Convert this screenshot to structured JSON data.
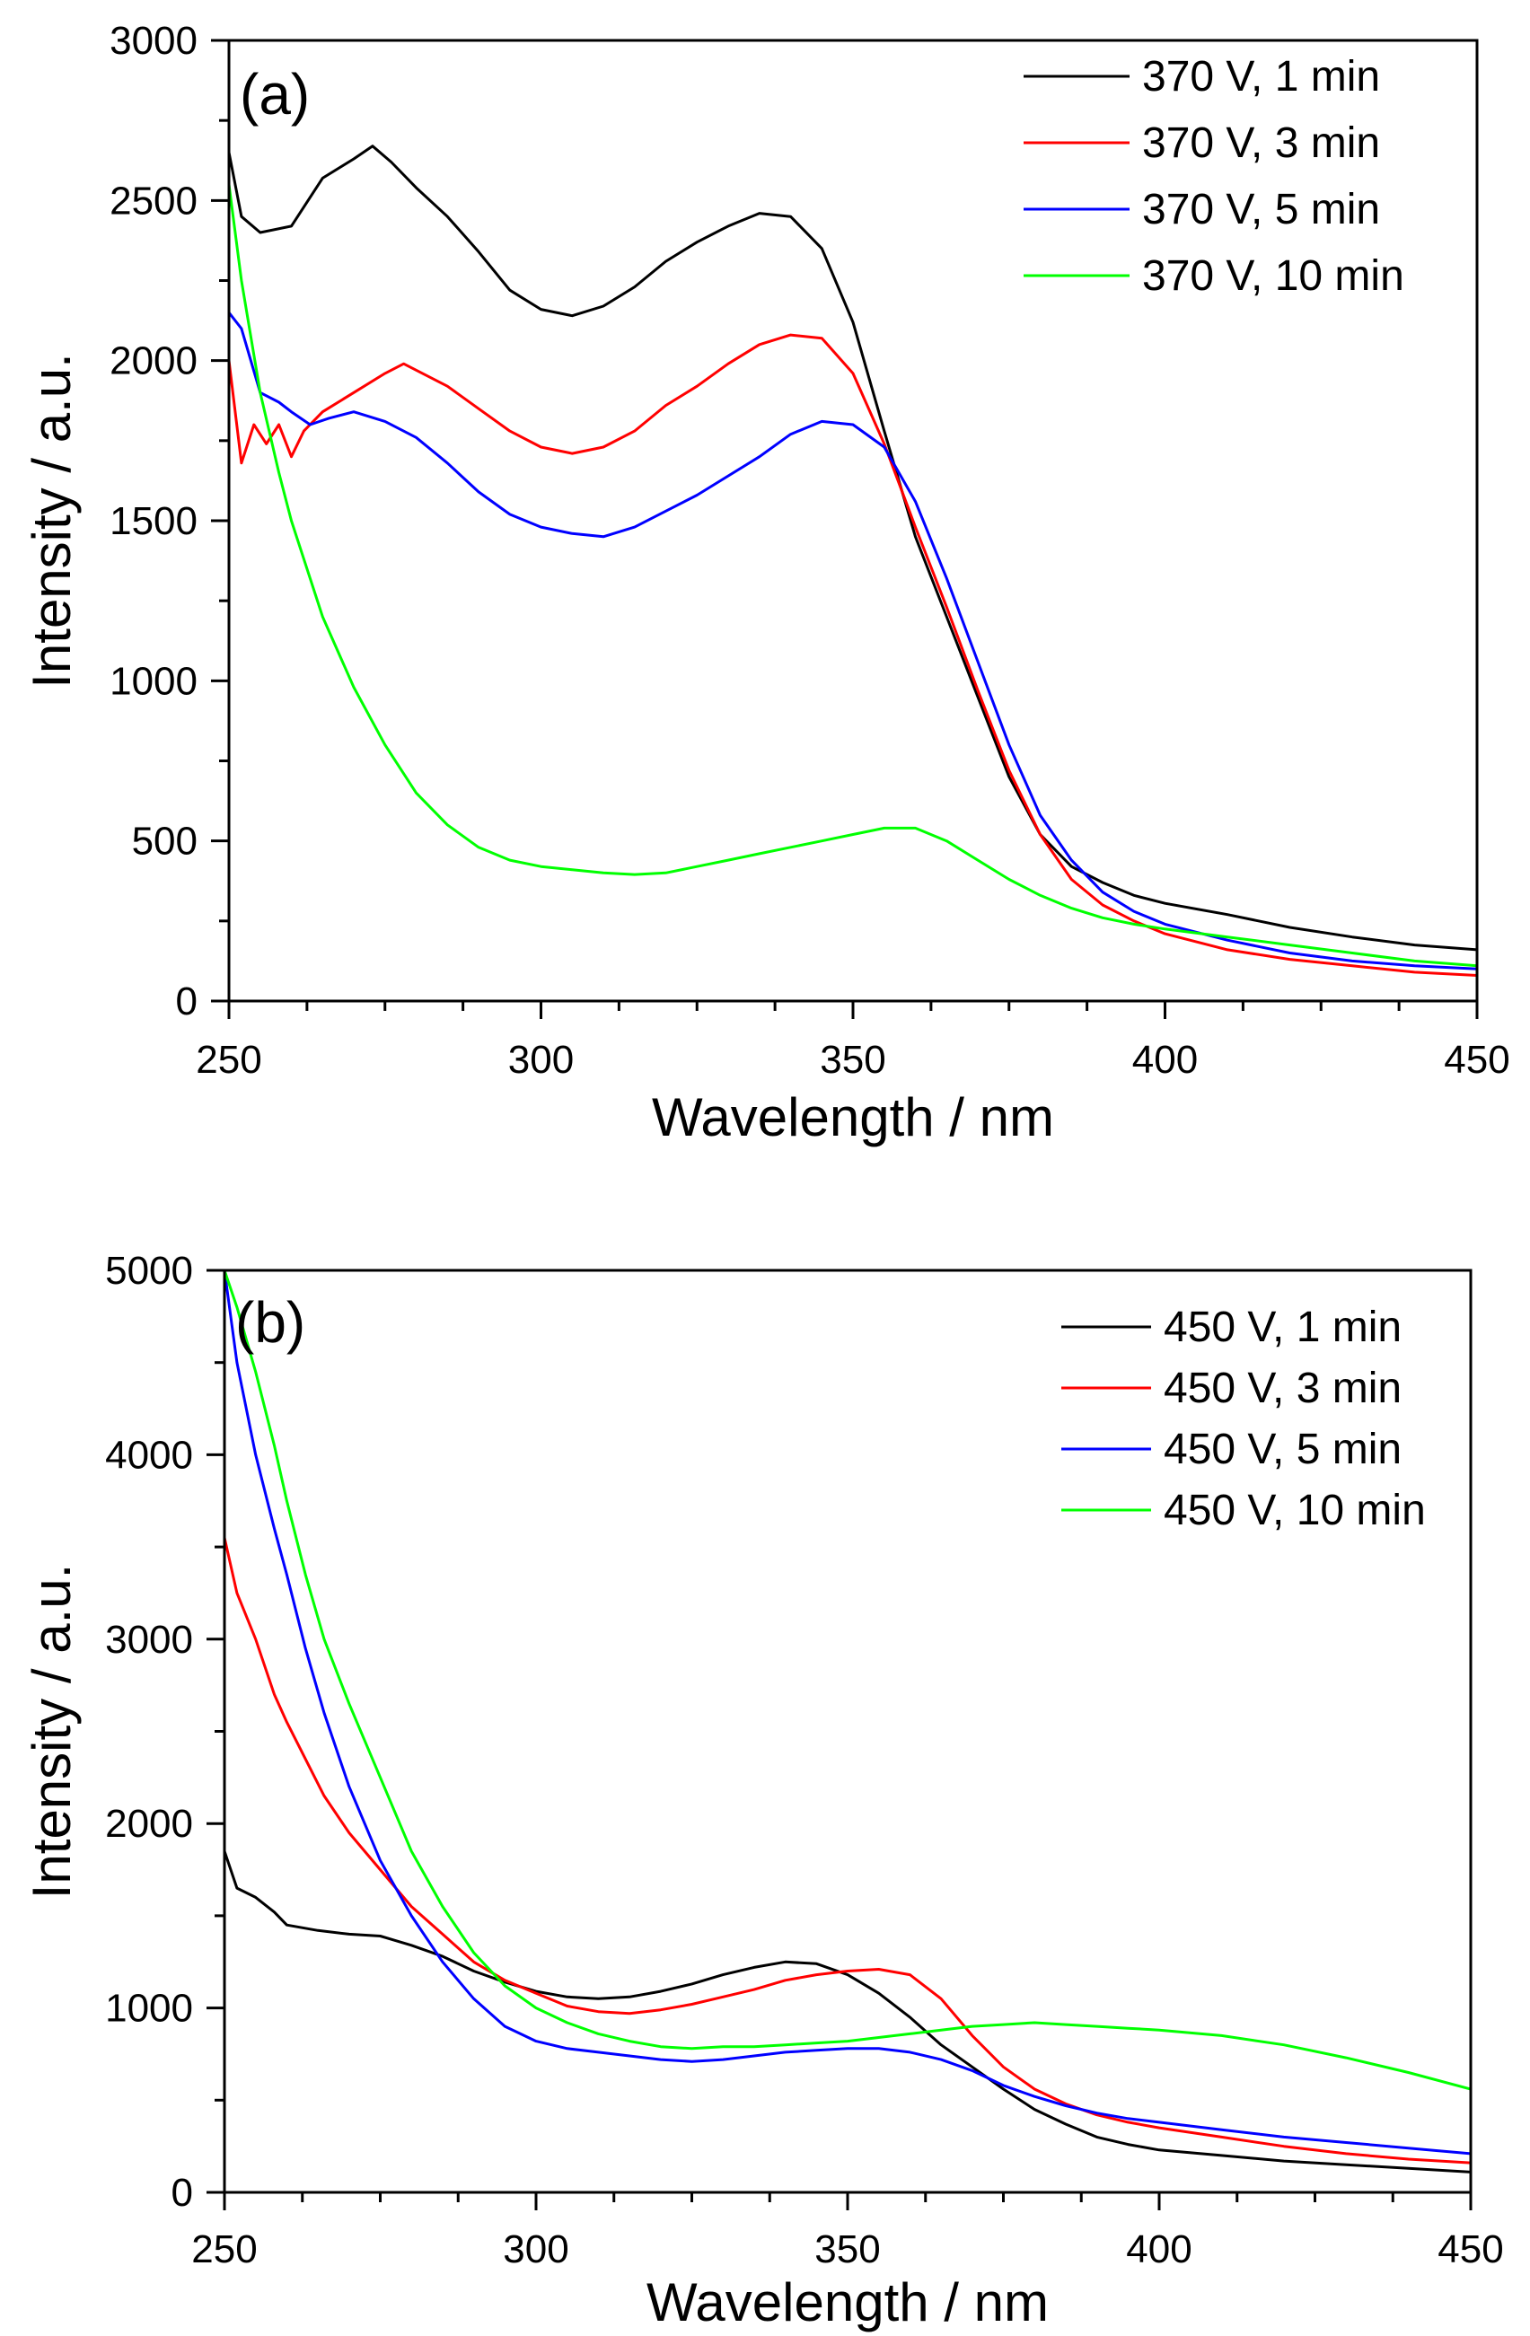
{
  "chart_data": [
    {
      "type": "line",
      "panel_label": "(a)",
      "xlabel": "Wavelength / nm",
      "ylabel": "Intensity / a.u.",
      "xlim": [
        250,
        450
      ],
      "ylim": [
        0,
        3000
      ],
      "xticks": [
        250,
        300,
        350,
        400,
        450
      ],
      "yticks": [
        0,
        500,
        1000,
        1500,
        2000,
        2500,
        3000
      ],
      "grid": false,
      "legend_position": "top-right",
      "series": [
        {
          "name": "370 V, 1 min",
          "color": "#000000",
          "x": [
            250,
            252,
            255,
            260,
            265,
            270,
            273,
            276,
            280,
            285,
            290,
            295,
            300,
            305,
            310,
            315,
            320,
            325,
            330,
            335,
            340,
            345,
            350,
            355,
            360,
            365,
            370,
            375,
            380,
            385,
            390,
            395,
            400,
            410,
            420,
            430,
            440,
            450
          ],
          "y": [
            2650,
            2450,
            2400,
            2420,
            2570,
            2630,
            2670,
            2620,
            2540,
            2450,
            2340,
            2220,
            2160,
            2140,
            2170,
            2230,
            2310,
            2370,
            2420,
            2460,
            2450,
            2350,
            2120,
            1780,
            1450,
            1200,
            950,
            700,
            520,
            420,
            370,
            330,
            305,
            270,
            230,
            200,
            175,
            160
          ]
        },
        {
          "name": "370 V, 3 min",
          "color": "#ff0000",
          "x": [
            250,
            252,
            254,
            256,
            258,
            260,
            262,
            265,
            270,
            275,
            278,
            285,
            290,
            295,
            300,
            305,
            310,
            315,
            320,
            325,
            330,
            335,
            340,
            345,
            350,
            355,
            360,
            365,
            370,
            375,
            380,
            385,
            390,
            395,
            400,
            410,
            420,
            430,
            440,
            450
          ],
          "y": [
            2000,
            1680,
            1800,
            1740,
            1800,
            1700,
            1780,
            1840,
            1900,
            1960,
            1990,
            1920,
            1850,
            1780,
            1730,
            1710,
            1730,
            1780,
            1860,
            1920,
            1990,
            2050,
            2080,
            2070,
            1960,
            1740,
            1480,
            1230,
            970,
            720,
            520,
            380,
            300,
            250,
            210,
            160,
            130,
            110,
            90,
            80
          ]
        },
        {
          "name": "370 V, 5 min",
          "color": "#0000ff",
          "x": [
            250,
            252,
            255,
            258,
            260,
            263,
            266,
            270,
            275,
            280,
            285,
            290,
            295,
            300,
            305,
            310,
            315,
            320,
            325,
            330,
            335,
            340,
            345,
            350,
            355,
            360,
            365,
            370,
            375,
            380,
            385,
            390,
            395,
            400,
            410,
            420,
            430,
            440,
            450
          ],
          "y": [
            2150,
            2100,
            1900,
            1870,
            1840,
            1800,
            1820,
            1840,
            1810,
            1760,
            1680,
            1590,
            1520,
            1480,
            1460,
            1450,
            1480,
            1530,
            1580,
            1640,
            1700,
            1770,
            1810,
            1800,
            1730,
            1560,
            1320,
            1060,
            800,
            580,
            440,
            340,
            280,
            240,
            190,
            150,
            125,
            110,
            100
          ]
        },
        {
          "name": "370 V, 10 min",
          "color": "#00ff00",
          "x": [
            250,
            252,
            255,
            258,
            260,
            265,
            270,
            275,
            280,
            285,
            290,
            295,
            300,
            305,
            310,
            315,
            320,
            325,
            330,
            335,
            340,
            345,
            350,
            355,
            360,
            365,
            370,
            375,
            380,
            385,
            390,
            395,
            400,
            410,
            420,
            430,
            440,
            450
          ],
          "y": [
            2550,
            2250,
            1900,
            1650,
            1500,
            1200,
            980,
            800,
            650,
            550,
            480,
            440,
            420,
            410,
            400,
            395,
            400,
            420,
            440,
            460,
            480,
            500,
            520,
            540,
            540,
            500,
            440,
            380,
            330,
            290,
            260,
            240,
            225,
            200,
            175,
            150,
            125,
            110
          ]
        }
      ]
    },
    {
      "type": "line",
      "panel_label": "(b)",
      "xlabel": "Wavelength / nm",
      "ylabel": "Intensity / a.u.",
      "xlim": [
        250,
        450
      ],
      "ylim": [
        0,
        5000
      ],
      "xticks": [
        250,
        300,
        350,
        400,
        450
      ],
      "yticks": [
        0,
        1000,
        2000,
        3000,
        4000,
        5000
      ],
      "grid": false,
      "legend_position": "top-right",
      "series": [
        {
          "name": "450 V, 1 min",
          "color": "#000000",
          "x": [
            250,
            252,
            255,
            258,
            260,
            265,
            270,
            275,
            280,
            285,
            290,
            295,
            300,
            305,
            310,
            315,
            320,
            325,
            330,
            335,
            340,
            345,
            350,
            355,
            360,
            365,
            370,
            375,
            380,
            385,
            390,
            395,
            400,
            410,
            420,
            430,
            440,
            450
          ],
          "y": [
            1850,
            1650,
            1600,
            1520,
            1450,
            1420,
            1400,
            1390,
            1340,
            1280,
            1200,
            1140,
            1090,
            1060,
            1050,
            1060,
            1090,
            1130,
            1180,
            1220,
            1250,
            1240,
            1180,
            1080,
            950,
            800,
            680,
            560,
            450,
            370,
            300,
            260,
            230,
            200,
            170,
            150,
            130,
            110
          ]
        },
        {
          "name": "450 V, 3 min",
          "color": "#ff0000",
          "x": [
            250,
            252,
            255,
            258,
            260,
            263,
            266,
            270,
            275,
            280,
            285,
            290,
            295,
            300,
            305,
            310,
            315,
            320,
            325,
            330,
            335,
            340,
            345,
            350,
            355,
            360,
            365,
            370,
            375,
            380,
            385,
            390,
            395,
            400,
            410,
            420,
            430,
            440,
            450
          ],
          "y": [
            3550,
            3250,
            3000,
            2700,
            2550,
            2350,
            2150,
            1950,
            1750,
            1550,
            1400,
            1250,
            1150,
            1080,
            1010,
            980,
            970,
            990,
            1020,
            1060,
            1100,
            1150,
            1180,
            1200,
            1210,
            1180,
            1050,
            850,
            680,
            560,
            480,
            420,
            380,
            350,
            300,
            250,
            210,
            180,
            160
          ]
        },
        {
          "name": "450 V, 5 min",
          "color": "#0000ff",
          "x": [
            250,
            252,
            255,
            258,
            260,
            263,
            266,
            270,
            275,
            280,
            285,
            290,
            295,
            300,
            305,
            310,
            315,
            320,
            325,
            330,
            335,
            340,
            345,
            350,
            355,
            360,
            365,
            370,
            375,
            380,
            385,
            390,
            395,
            400,
            410,
            420,
            430,
            440,
            450
          ],
          "y": [
            5000,
            4500,
            4000,
            3600,
            3350,
            2950,
            2600,
            2200,
            1800,
            1500,
            1250,
            1050,
            900,
            820,
            780,
            760,
            740,
            720,
            710,
            720,
            740,
            760,
            770,
            780,
            780,
            760,
            720,
            660,
            580,
            520,
            470,
            430,
            400,
            380,
            340,
            300,
            270,
            240,
            210
          ]
        },
        {
          "name": "450 V, 10 min",
          "color": "#00ff00",
          "x": [
            250,
            252,
            255,
            258,
            260,
            263,
            266,
            270,
            275,
            280,
            285,
            290,
            295,
            300,
            305,
            310,
            315,
            320,
            325,
            330,
            335,
            340,
            345,
            350,
            355,
            360,
            365,
            370,
            375,
            380,
            385,
            390,
            395,
            400,
            410,
            420,
            430,
            440,
            450
          ],
          "y": [
            5000,
            4800,
            4450,
            4050,
            3750,
            3350,
            3000,
            2650,
            2250,
            1850,
            1550,
            1300,
            1120,
            1000,
            920,
            860,
            820,
            790,
            780,
            790,
            790,
            800,
            810,
            820,
            840,
            860,
            880,
            900,
            910,
            920,
            910,
            900,
            890,
            880,
            850,
            800,
            730,
            650,
            560
          ]
        }
      ]
    }
  ]
}
